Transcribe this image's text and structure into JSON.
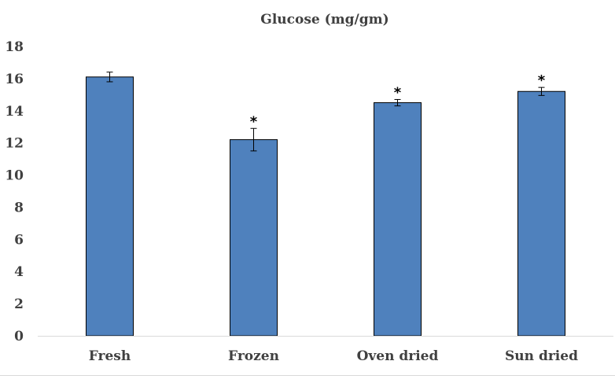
{
  "chart_data": {
    "type": "bar",
    "title": "Glucose (mg/gm)",
    "categories": [
      "Fresh",
      "Frozen",
      "Oven dried",
      "Sun dried"
    ],
    "values": [
      16.1,
      12.2,
      14.5,
      15.2
    ],
    "error": [
      0.3,
      0.7,
      0.2,
      0.25
    ],
    "annotations": [
      "",
      "*",
      "*",
      "*"
    ],
    "ylim": [
      0,
      18
    ],
    "yticks": [
      "0",
      "2",
      "4",
      "6",
      "8",
      "10",
      "12",
      "14",
      "16",
      "18"
    ],
    "grid": false,
    "legend": "none",
    "bar_color": "#4f81bd",
    "bar_edge_color": "#000000"
  }
}
